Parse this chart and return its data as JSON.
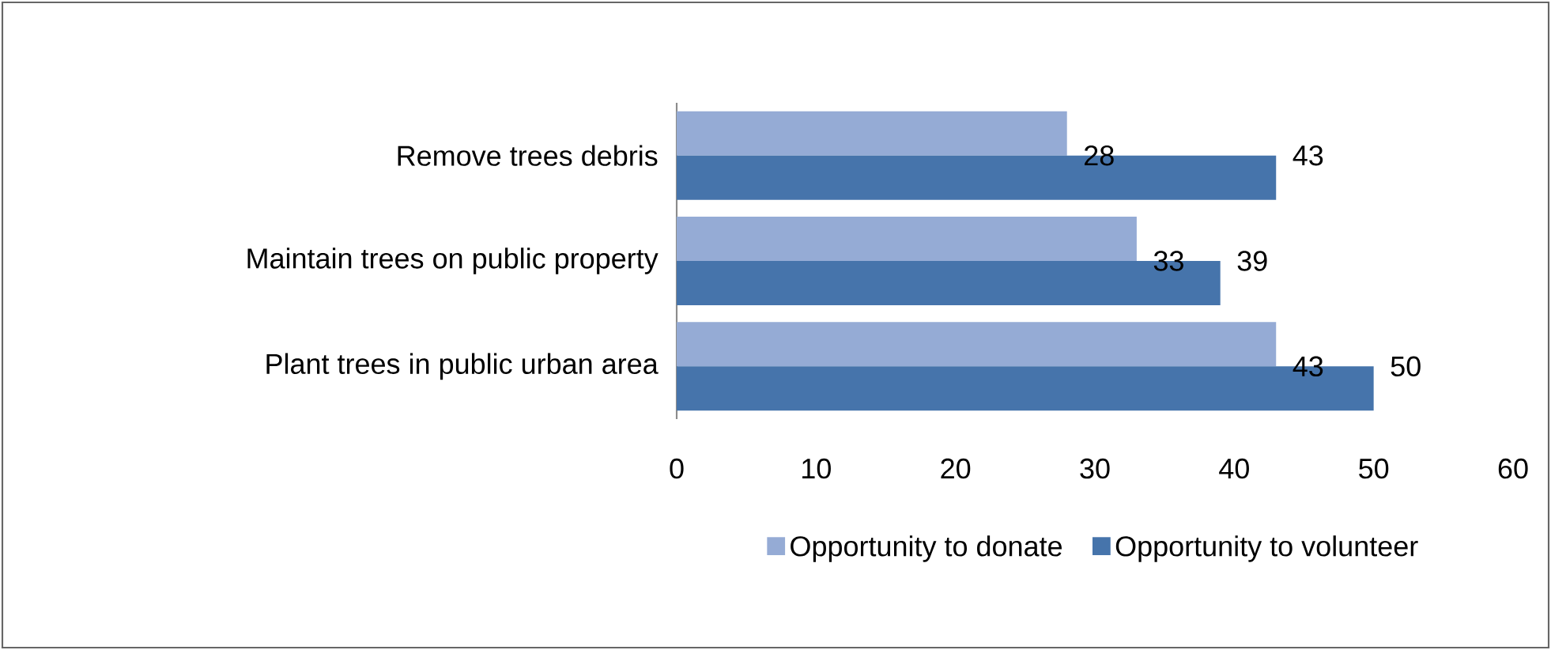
{
  "chart_data": {
    "type": "bar",
    "orientation": "horizontal",
    "categories": [
      "Remove trees debris",
      "Maintain trees on public property",
      "Plant trees in public urban area"
    ],
    "series": [
      {
        "name": "Opportunity to donate",
        "color": "#95abd5",
        "values": [
          28,
          33,
          43
        ]
      },
      {
        "name": "Opportunity to volunteer",
        "color": "#4674ab",
        "values": [
          43,
          39,
          50
        ]
      }
    ],
    "xlim": [
      0,
      60
    ],
    "xticks": [
      0,
      10,
      20,
      30,
      40,
      50,
      60
    ],
    "data_labels": true,
    "legend": "bottom",
    "grid": false
  }
}
